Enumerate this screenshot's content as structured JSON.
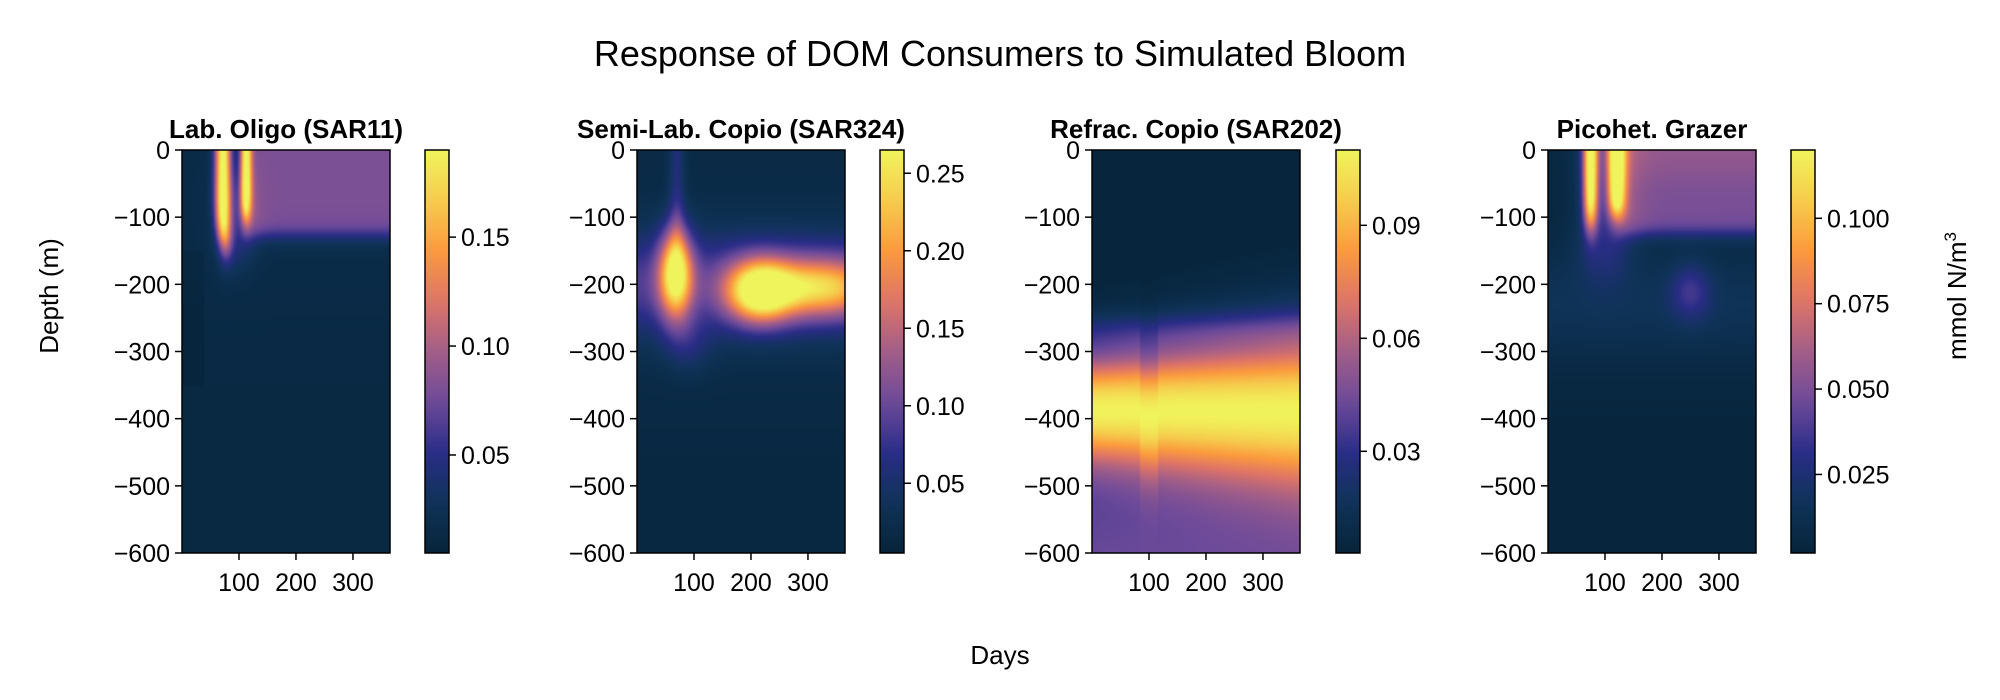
{
  "chart_data": {
    "type": "heatmap",
    "title": "Response of DOM Consumers to Simulated Bloom",
    "xlabel": "Days",
    "ylabel": "Depth (m)",
    "colorbar_label": "mmol N/m",
    "colorbar_label_superscript": "3",
    "colormap": [
      "#06243a",
      "#0f3358",
      "#2a2d87",
      "#6d4a9a",
      "#a25e88",
      "#de7467",
      "#fb9a3e",
      "#f6cc4c",
      "#f0f45c"
    ],
    "x_range": [
      0,
      365
    ],
    "y_range": [
      -600,
      0
    ],
    "x_ticks": [
      100,
      200,
      300
    ],
    "x_tick_labels": [
      "100",
      "200",
      "300"
    ],
    "y_ticks": [
      0,
      -100,
      -200,
      -300,
      -400,
      -500,
      -600
    ],
    "y_tick_labels": [
      "0",
      "−100",
      "−200",
      "−300",
      "−400",
      "−500",
      "−600"
    ],
    "panels": [
      {
        "title": "Lab. Oligo (SAR11)",
        "vmin": 0.005,
        "vmax": 0.19,
        "cbar_ticks": [
          0.05,
          0.1,
          0.15
        ],
        "cbar_tick_labels": [
          "0.05",
          "0.10",
          "0.15"
        ],
        "description": "surface bloom peaks ~0.19 near days 60-120 in top 150 m; ~0.08 surface layer after day 120"
      },
      {
        "title": "Semi-Lab. Copio (SAR324)",
        "vmin": 0.005,
        "vmax": 0.265,
        "cbar_ticks": [
          0.05,
          0.1,
          0.15,
          0.2,
          0.25
        ],
        "cbar_tick_labels": [
          "0.05",
          "0.10",
          "0.15",
          "0.20",
          "0.25"
        ],
        "description": "peaks ~0.25 near -190 m around day 75 and ~0.24 near -210 m around day 220"
      },
      {
        "title": "Refrac. Copio (SAR202)",
        "vmin": 0.003,
        "vmax": 0.11,
        "cbar_ticks": [
          0.03,
          0.06,
          0.09
        ],
        "cbar_tick_labels": [
          "0.03",
          "0.06",
          "0.09"
        ],
        "description": "broad maximum ~0.11 between -330 and -450 m throughout the year; ~0.05 at -600 m"
      },
      {
        "title": "Picohet. Grazer",
        "vmin": 0.002,
        "vmax": 0.12,
        "cbar_ticks": [
          0.025,
          0.05,
          0.075,
          0.1
        ],
        "cbar_tick_labels": [
          "0.025",
          "0.050",
          "0.075",
          "0.100"
        ],
        "description": "surface peaks ~0.12 near days 70-130; ~0.05 surface layer afterwards; weak patch ~0.025 near -210 m day 250"
      }
    ]
  }
}
